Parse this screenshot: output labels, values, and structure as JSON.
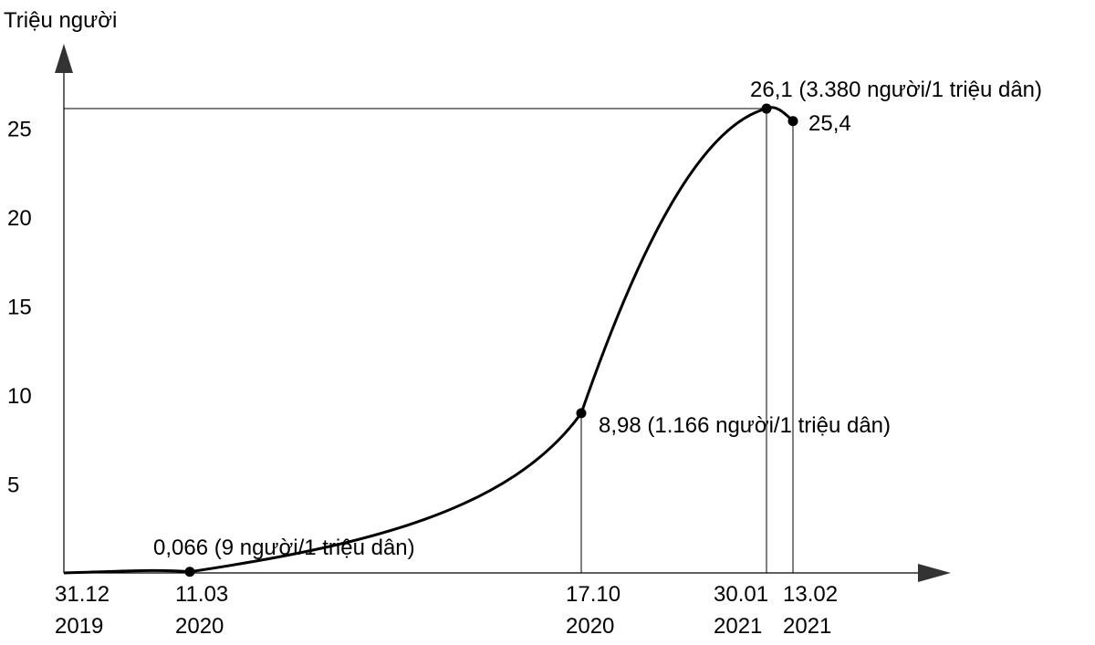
{
  "chart_data": {
    "type": "line",
    "ylabel": "Triệu người",
    "ylim": [
      0,
      28
    ],
    "yticks": [
      "5",
      "10",
      "15",
      "20",
      "25"
    ],
    "grid": false,
    "series": [
      {
        "x": [
          "31.12.2019",
          "11.03.2020",
          "17.10.2020",
          "30.01.2021",
          "13.02.2021"
        ],
        "y": [
          0,
          0.066,
          8.98,
          26.1,
          25.4
        ]
      }
    ],
    "x_ticks": [
      {
        "day": "31.12",
        "year": "2019"
      },
      {
        "day": "11.03",
        "year": "2020"
      },
      {
        "day": "17.10",
        "year": "2020"
      },
      {
        "day": "30.01",
        "year": "2021"
      },
      {
        "day": "13.02",
        "year": "2021"
      }
    ],
    "annotations": [
      "0,066 (9 người/1 triệu dân)",
      "8,98 (1.166 người/1 triệu dân)",
      "26,1 (3.380 người/1 triệu dân)",
      "25,4"
    ]
  }
}
